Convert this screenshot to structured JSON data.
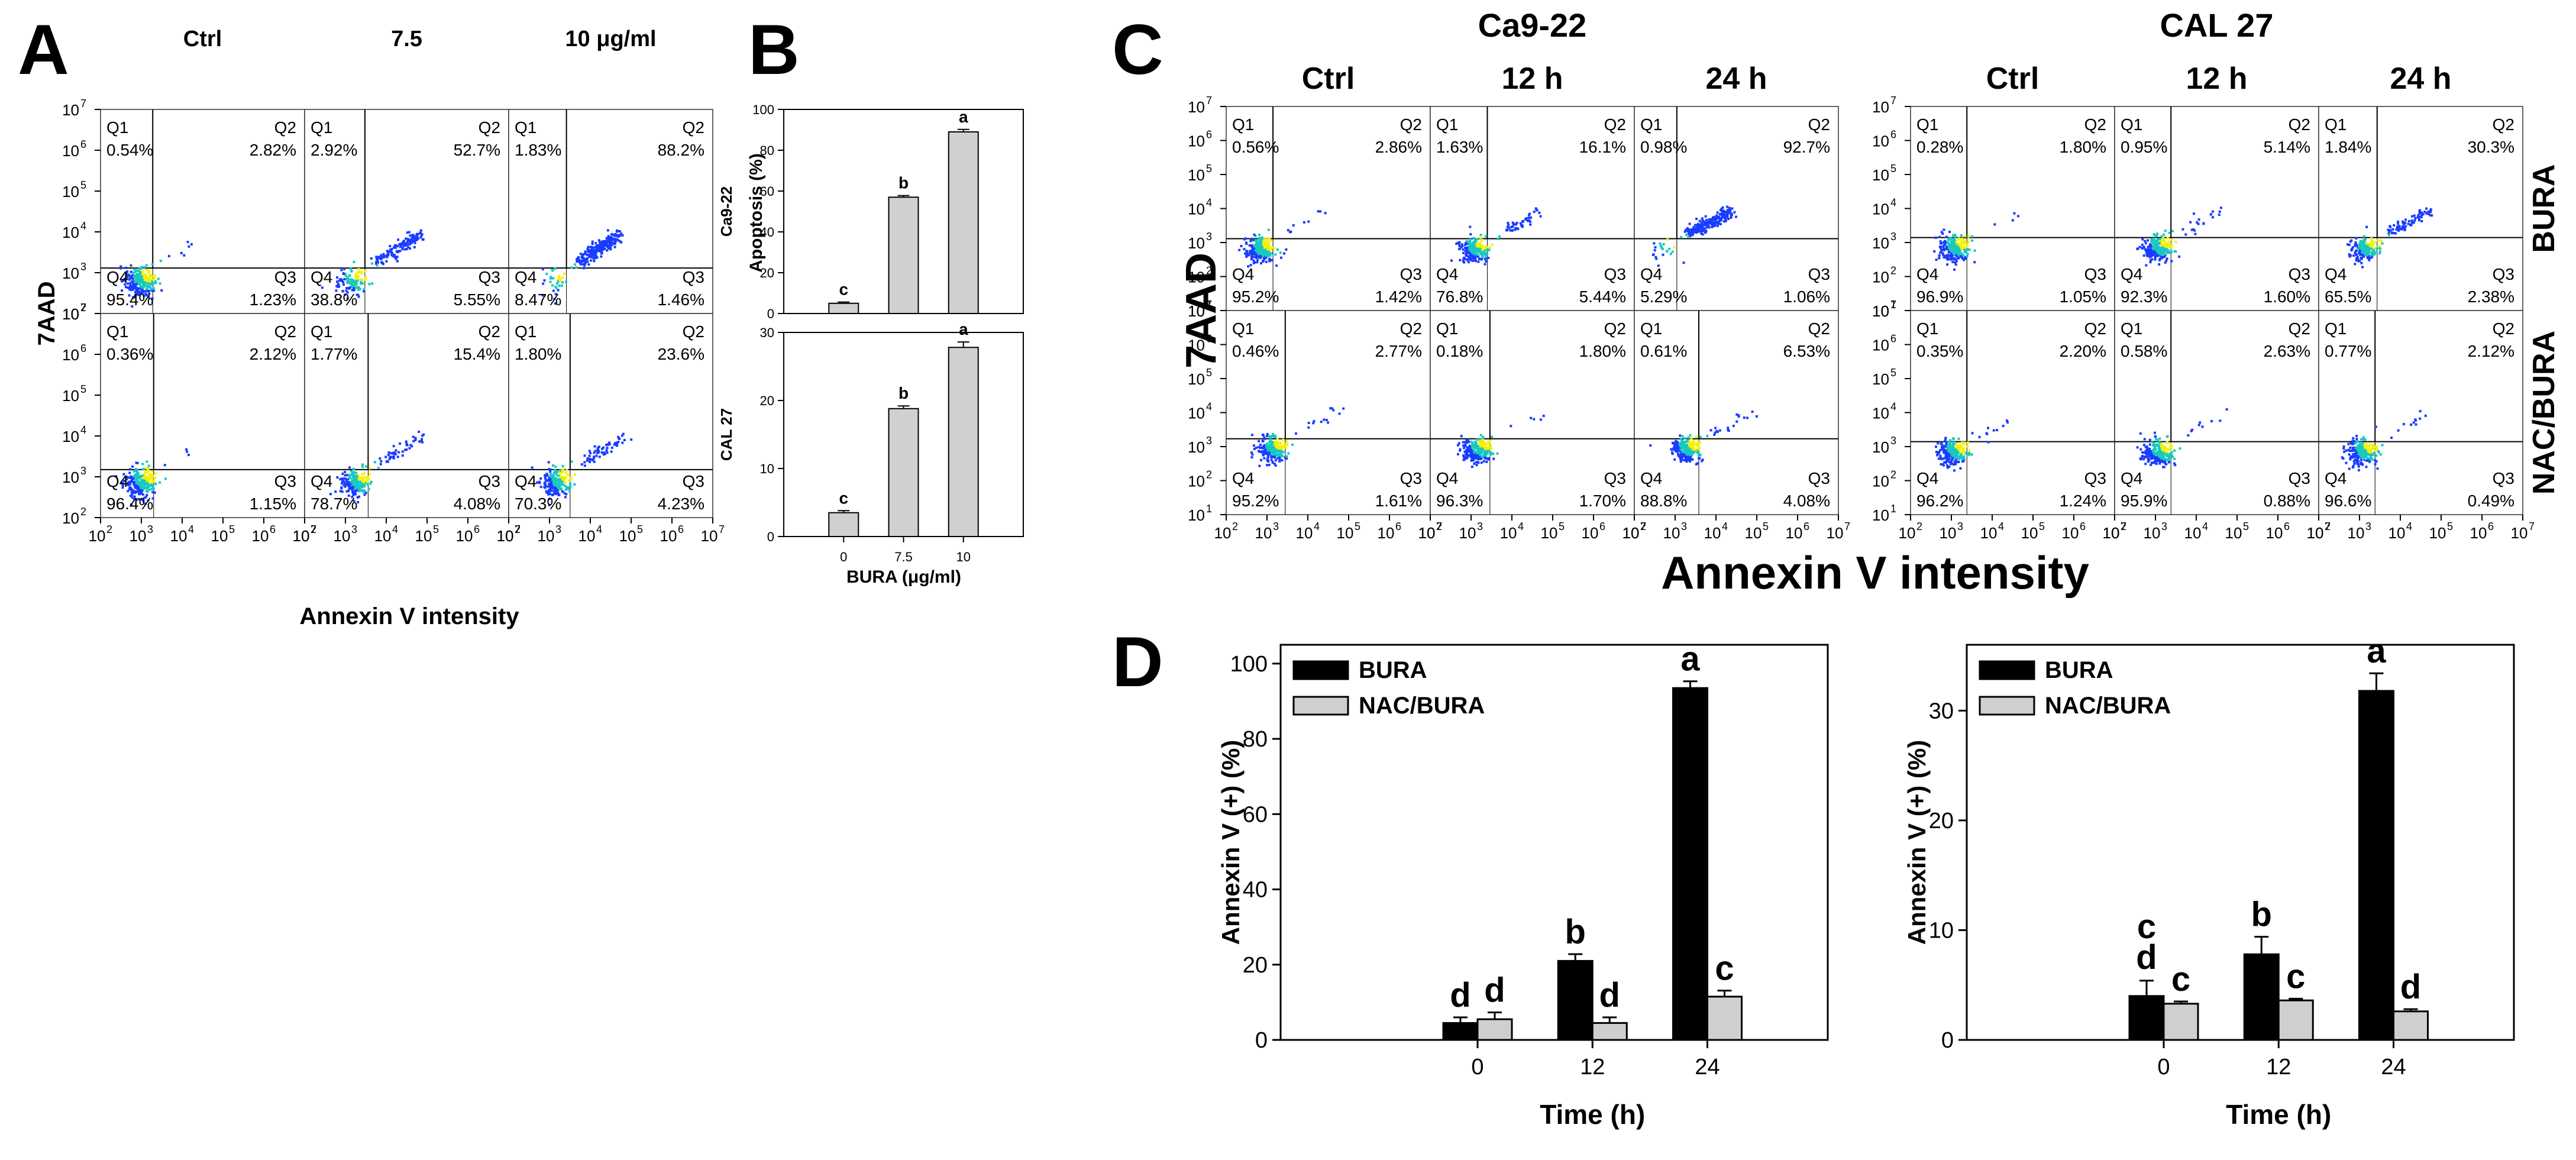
{
  "colors": {
    "bura": "#000000",
    "nac_bura": "#cfcfcf",
    "bar_b": "#d0d0d0",
    "cell_low": "#1a3cff",
    "cell_mid": "#19c8c0",
    "cell_high": "#f2f200"
  },
  "panel_letters": {
    "A": "A",
    "B": "B",
    "C": "C",
    "D": "D"
  },
  "chart_data": [
    {
      "id": "A",
      "type": "scatter",
      "subtype": "flow-cytometry-quadrant-grid",
      "column_labels": [
        "Ctrl",
        "7.5",
        "10 μg/ml"
      ],
      "ylabel": "7AAD",
      "xlabel": "Annexin V intensity",
      "x_scale": "log",
      "y_scale": "log",
      "xlim": [
        100,
        10000000
      ],
      "ylim": [
        100,
        10000000
      ],
      "x_ticks": [
        "10",
        "10",
        "10",
        "10",
        "10",
        "10"
      ],
      "x_tick_exp": [
        "2",
        "3",
        "4",
        "5",
        "6",
        "7"
      ],
      "y_ticks": [
        "10",
        "10",
        "10",
        "10",
        "10",
        "10"
      ],
      "y_tick_exp": [
        "2",
        "3",
        "4",
        "5",
        "6",
        "7"
      ],
      "plots": [
        {
          "row": 0,
          "col": 0,
          "gate_x": 1900,
          "gate_y": 1300,
          "quadrants": [
            {
              "label": "Q1",
              "value": "0.54%"
            },
            {
              "label": "Q2",
              "value": "2.82%"
            },
            {
              "label": "Q4",
              "value": "95.4%"
            },
            {
              "label": "Q3",
              "value": "1.23%"
            }
          ]
        },
        {
          "row": 0,
          "col": 1,
          "gate_x": 3000,
          "gate_y": 1300,
          "quadrants": [
            {
              "label": "Q1",
              "value": "2.92%"
            },
            {
              "label": "Q2",
              "value": "52.7%"
            },
            {
              "label": "Q4",
              "value": "38.8%"
            },
            {
              "label": "Q3",
              "value": "5.55%"
            }
          ]
        },
        {
          "row": 0,
          "col": 2,
          "gate_x": 2600,
          "gate_y": 1300,
          "quadrants": [
            {
              "label": "Q1",
              "value": "1.83%"
            },
            {
              "label": "Q2",
              "value": "88.2%"
            },
            {
              "label": "Q4",
              "value": "8.47%"
            },
            {
              "label": "Q3",
              "value": "1.46%"
            }
          ]
        },
        {
          "row": 1,
          "col": 0,
          "gate_x": 2000,
          "gate_y": 1500,
          "quadrants": [
            {
              "label": "Q1",
              "value": "0.36%"
            },
            {
              "label": "Q2",
              "value": "2.12%"
            },
            {
              "label": "Q4",
              "value": "96.4%"
            },
            {
              "label": "Q3",
              "value": "1.15%"
            }
          ]
        },
        {
          "row": 1,
          "col": 1,
          "gate_x": 3600,
          "gate_y": 1500,
          "quadrants": [
            {
              "label": "Q1",
              "value": "1.77%"
            },
            {
              "label": "Q2",
              "value": "15.4%"
            },
            {
              "label": "Q4",
              "value": "78.7%"
            },
            {
              "label": "Q3",
              "value": "4.08%"
            }
          ]
        },
        {
          "row": 1,
          "col": 2,
          "gate_x": 3200,
          "gate_y": 1500,
          "quadrants": [
            {
              "label": "Q1",
              "value": "1.80%"
            },
            {
              "label": "Q2",
              "value": "23.6%"
            },
            {
              "label": "Q4",
              "value": "70.3%"
            },
            {
              "label": "Q3",
              "value": "4.23%"
            }
          ]
        }
      ]
    },
    {
      "id": "B",
      "type": "bar",
      "categories": [
        "0",
        "7.5",
        "10"
      ],
      "xlabel": "BURA (μg/ml)",
      "ylabel": "Apoptosis (%)",
      "subplots": [
        {
          "row_label": "Ca9-22",
          "ylim": [
            0,
            100
          ],
          "yticks": [
            0,
            20,
            40,
            60,
            80,
            100
          ],
          "values": [
            5,
            57,
            89
          ],
          "errors": [
            0.6,
            0.8,
            1.2
          ],
          "letters": [
            "c",
            "b",
            "a"
          ]
        },
        {
          "row_label": "CAL 27",
          "ylim": [
            0,
            30
          ],
          "yticks": [
            0,
            10,
            20,
            30
          ],
          "values": [
            3.5,
            18.8,
            27.8
          ],
          "errors": [
            0.3,
            0.4,
            0.8
          ],
          "letters": [
            "c",
            "b",
            "a"
          ]
        }
      ]
    },
    {
      "id": "C",
      "type": "scatter",
      "subtype": "flow-cytometry-quadrant-grid",
      "group_labels": [
        "Ca9-22",
        "CAL 27"
      ],
      "column_labels": [
        "Ctrl",
        "12 h",
        "24 h"
      ],
      "row_labels": [
        "BURA",
        "NAC/BURA"
      ],
      "ylabel": "7AAD",
      "xlabel": "Annexin V intensity",
      "x_scale": "log",
      "y_scale": "log",
      "xlim": [
        100,
        10000000
      ],
      "ylim": [
        10,
        10000000
      ],
      "x_ticks": [
        "10",
        "10",
        "10",
        "10",
        "10",
        "10"
      ],
      "x_tick_exp": [
        "2",
        "3",
        "4",
        "5",
        "6",
        "7"
      ],
      "y_ticks": [
        "10",
        "10",
        "10",
        "10",
        "10",
        "10",
        "10"
      ],
      "y_tick_exp": [
        "1",
        "2",
        "3",
        "4",
        "5",
        "6",
        "7"
      ],
      "plots": [
        {
          "group": 0,
          "row": 0,
          "col": 0,
          "gate_x": 1400,
          "gate_y": 1300,
          "quadrants": [
            {
              "label": "Q1",
              "value": "0.56%"
            },
            {
              "label": "Q2",
              "value": "2.86%"
            },
            {
              "label": "Q4",
              "value": "95.2%"
            },
            {
              "label": "Q3",
              "value": "1.42%"
            }
          ]
        },
        {
          "group": 0,
          "row": 0,
          "col": 1,
          "gate_x": 2500,
          "gate_y": 1300,
          "quadrants": [
            {
              "label": "Q1",
              "value": "1.63%"
            },
            {
              "label": "Q2",
              "value": "16.1%"
            },
            {
              "label": "Q4",
              "value": "76.8%"
            },
            {
              "label": "Q3",
              "value": "5.44%"
            }
          ]
        },
        {
          "group": 0,
          "row": 0,
          "col": 2,
          "gate_x": 1100,
          "gate_y": 1300,
          "quadrants": [
            {
              "label": "Q1",
              "value": "0.98%"
            },
            {
              "label": "Q2",
              "value": "92.7%"
            },
            {
              "label": "Q4",
              "value": "5.29%"
            },
            {
              "label": "Q3",
              "value": "1.06%"
            }
          ]
        },
        {
          "group": 0,
          "row": 1,
          "col": 0,
          "gate_x": 2800,
          "gate_y": 1700,
          "quadrants": [
            {
              "label": "Q1",
              "value": "0.46%"
            },
            {
              "label": "Q2",
              "value": "2.77%"
            },
            {
              "label": "Q4",
              "value": "95.2%"
            },
            {
              "label": "Q3",
              "value": "1.61%"
            }
          ]
        },
        {
          "group": 0,
          "row": 1,
          "col": 1,
          "gate_x": 2900,
          "gate_y": 1700,
          "quadrants": [
            {
              "label": "Q1",
              "value": "0.18%"
            },
            {
              "label": "Q2",
              "value": "1.80%"
            },
            {
              "label": "Q4",
              "value": "96.3%"
            },
            {
              "label": "Q3",
              "value": "1.70%"
            }
          ]
        },
        {
          "group": 0,
          "row": 1,
          "col": 2,
          "gate_x": 3800,
          "gate_y": 1700,
          "quadrants": [
            {
              "label": "Q1",
              "value": "0.61%"
            },
            {
              "label": "Q2",
              "value": "6.53%"
            },
            {
              "label": "Q4",
              "value": "88.8%"
            },
            {
              "label": "Q3",
              "value": "4.08%"
            }
          ]
        },
        {
          "group": 1,
          "row": 0,
          "col": 0,
          "gate_x": 2400,
          "gate_y": 1400,
          "quadrants": [
            {
              "label": "Q1",
              "value": "0.28%"
            },
            {
              "label": "Q2",
              "value": "1.80%"
            },
            {
              "label": "Q4",
              "value": "96.9%"
            },
            {
              "label": "Q3",
              "value": "1.05%"
            }
          ]
        },
        {
          "group": 1,
          "row": 0,
          "col": 1,
          "gate_x": 2400,
          "gate_y": 1400,
          "quadrants": [
            {
              "label": "Q1",
              "value": "0.95%"
            },
            {
              "label": "Q2",
              "value": "5.14%"
            },
            {
              "label": "Q4",
              "value": "92.3%"
            },
            {
              "label": "Q3",
              "value": "1.60%"
            }
          ]
        },
        {
          "group": 1,
          "row": 0,
          "col": 2,
          "gate_x": 2700,
          "gate_y": 1400,
          "quadrants": [
            {
              "label": "Q1",
              "value": "1.84%"
            },
            {
              "label": "Q2",
              "value": "30.3%"
            },
            {
              "label": "Q4",
              "value": "65.5%"
            },
            {
              "label": "Q3",
              "value": "2.38%"
            }
          ]
        },
        {
          "group": 1,
          "row": 1,
          "col": 0,
          "gate_x": 2400,
          "gate_y": 1400,
          "quadrants": [
            {
              "label": "Q1",
              "value": "0.35%"
            },
            {
              "label": "Q2",
              "value": "2.20%"
            },
            {
              "label": "Q4",
              "value": "96.2%"
            },
            {
              "label": "Q3",
              "value": "1.24%"
            }
          ]
        },
        {
          "group": 1,
          "row": 1,
          "col": 1,
          "gate_x": 2400,
          "gate_y": 1400,
          "quadrants": [
            {
              "label": "Q1",
              "value": "0.58%"
            },
            {
              "label": "Q2",
              "value": "2.63%"
            },
            {
              "label": "Q4",
              "value": "95.9%"
            },
            {
              "label": "Q3",
              "value": "0.88%"
            }
          ]
        },
        {
          "group": 1,
          "row": 1,
          "col": 2,
          "gate_x": 2400,
          "gate_y": 1400,
          "quadrants": [
            {
              "label": "Q1",
              "value": "0.77%"
            },
            {
              "label": "Q2",
              "value": "2.12%"
            },
            {
              "label": "Q4",
              "value": "96.6%"
            },
            {
              "label": "Q3",
              "value": "0.49%"
            }
          ]
        }
      ]
    },
    {
      "id": "D",
      "type": "bar",
      "categories": [
        "0",
        "12",
        "24"
      ],
      "xlabel": "Time (h)",
      "ylabel": "Annexin V (+) (%)",
      "legend": [
        "BURA",
        "NAC/BURA"
      ],
      "legend_position": "top-left",
      "subplots": [
        {
          "ylim": [
            0,
            105
          ],
          "yticks": [
            0,
            20,
            40,
            60,
            80,
            100
          ],
          "series": [
            {
              "name": "BURA",
              "values": [
                4.5,
                21,
                93.5
              ],
              "errors": [
                1.5,
                1.8,
                1.8
              ],
              "letters": [
                "d",
                "b",
                "a"
              ]
            },
            {
              "name": "NAC/BURA",
              "values": [
                5.5,
                4.5,
                11.5
              ],
              "errors": [
                1.8,
                1.5,
                1.6
              ],
              "letters": [
                "d",
                "d",
                "c"
              ]
            }
          ]
        },
        {
          "ylim": [
            0,
            36
          ],
          "yticks": [
            0,
            10,
            20,
            30
          ],
          "series": [
            {
              "name": "BURA",
              "values": [
                4,
                7.8,
                31.8
              ],
              "errors": [
                1.4,
                1.6,
                1.6
              ],
              "letters": [
                "c\nd",
                "b",
                "a"
              ]
            },
            {
              "name": "NAC/BURA",
              "values": [
                3.3,
                3.6,
                2.6
              ],
              "errors": [
                0.2,
                0.15,
                0.2
              ],
              "letters": [
                "c",
                "c",
                "d"
              ]
            }
          ]
        }
      ]
    }
  ]
}
